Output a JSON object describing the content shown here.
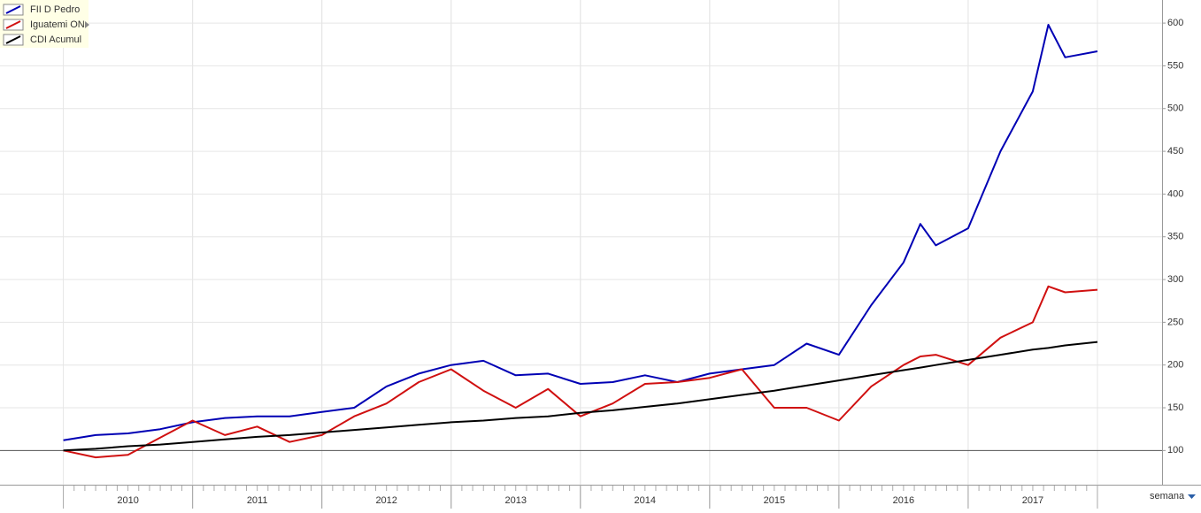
{
  "chart_data": {
    "type": "line",
    "x": [
      2010,
      2010.25,
      2010.5,
      2010.75,
      2011,
      2011.25,
      2011.5,
      2011.75,
      2012,
      2012.25,
      2012.5,
      2012.75,
      2013,
      2013.25,
      2013.5,
      2013.75,
      2014,
      2014.25,
      2014.5,
      2014.75,
      2015,
      2015.25,
      2015.5,
      2015.75,
      2016,
      2016.25,
      2016.5,
      2016.63,
      2016.75,
      2017,
      2017.25,
      2017.5,
      2017.62,
      2017.75,
      2018
    ],
    "series": [
      {
        "name": "FII D Pedro",
        "color": "#0000b4",
        "values": [
          112,
          118,
          120,
          125,
          133,
          138,
          140,
          140,
          145,
          150,
          175,
          190,
          200,
          205,
          188,
          190,
          178,
          180,
          188,
          180,
          190,
          195,
          200,
          225,
          212,
          270,
          320,
          365,
          340,
          360,
          450,
          520,
          598,
          560,
          567
        ]
      },
      {
        "name": "Iguatemi ON",
        "color": "#d01010",
        "values": [
          100,
          92,
          95,
          115,
          135,
          118,
          128,
          110,
          118,
          140,
          155,
          180,
          195,
          170,
          150,
          172,
          140,
          155,
          178,
          180,
          185,
          195,
          150,
          150,
          135,
          175,
          200,
          210,
          212,
          200,
          232,
          250,
          292,
          285,
          288
        ]
      },
      {
        "name": "CDI Acumul",
        "color": "#000000",
        "values": [
          100,
          102,
          105,
          107,
          110,
          113,
          116,
          118,
          121,
          124,
          127,
          130,
          133,
          135,
          138,
          140,
          144,
          147,
          151,
          155,
          160,
          165,
          170,
          176,
          182,
          188,
          194,
          197,
          200,
          206,
          212,
          218,
          220,
          223,
          227
        ]
      }
    ],
    "xlim": [
      2009.51,
      2018.5
    ],
    "xticks": [
      {
        "value": 2010.5,
        "label": "2010"
      },
      {
        "value": 2011.5,
        "label": "2011"
      },
      {
        "value": 2012.5,
        "label": "2012"
      },
      {
        "value": 2013.5,
        "label": "2013"
      },
      {
        "value": 2014.5,
        "label": "2014"
      },
      {
        "value": 2015.5,
        "label": "2015"
      },
      {
        "value": 2016.5,
        "label": "2016"
      },
      {
        "value": 2017.5,
        "label": "2017"
      }
    ],
    "ylim": [
      60,
      627
    ],
    "yticks": [
      100,
      150,
      200,
      250,
      300,
      350,
      400,
      450,
      500,
      550,
      600
    ],
    "baseline": 100,
    "period": "semana",
    "grid": true,
    "legend": "top-left"
  }
}
